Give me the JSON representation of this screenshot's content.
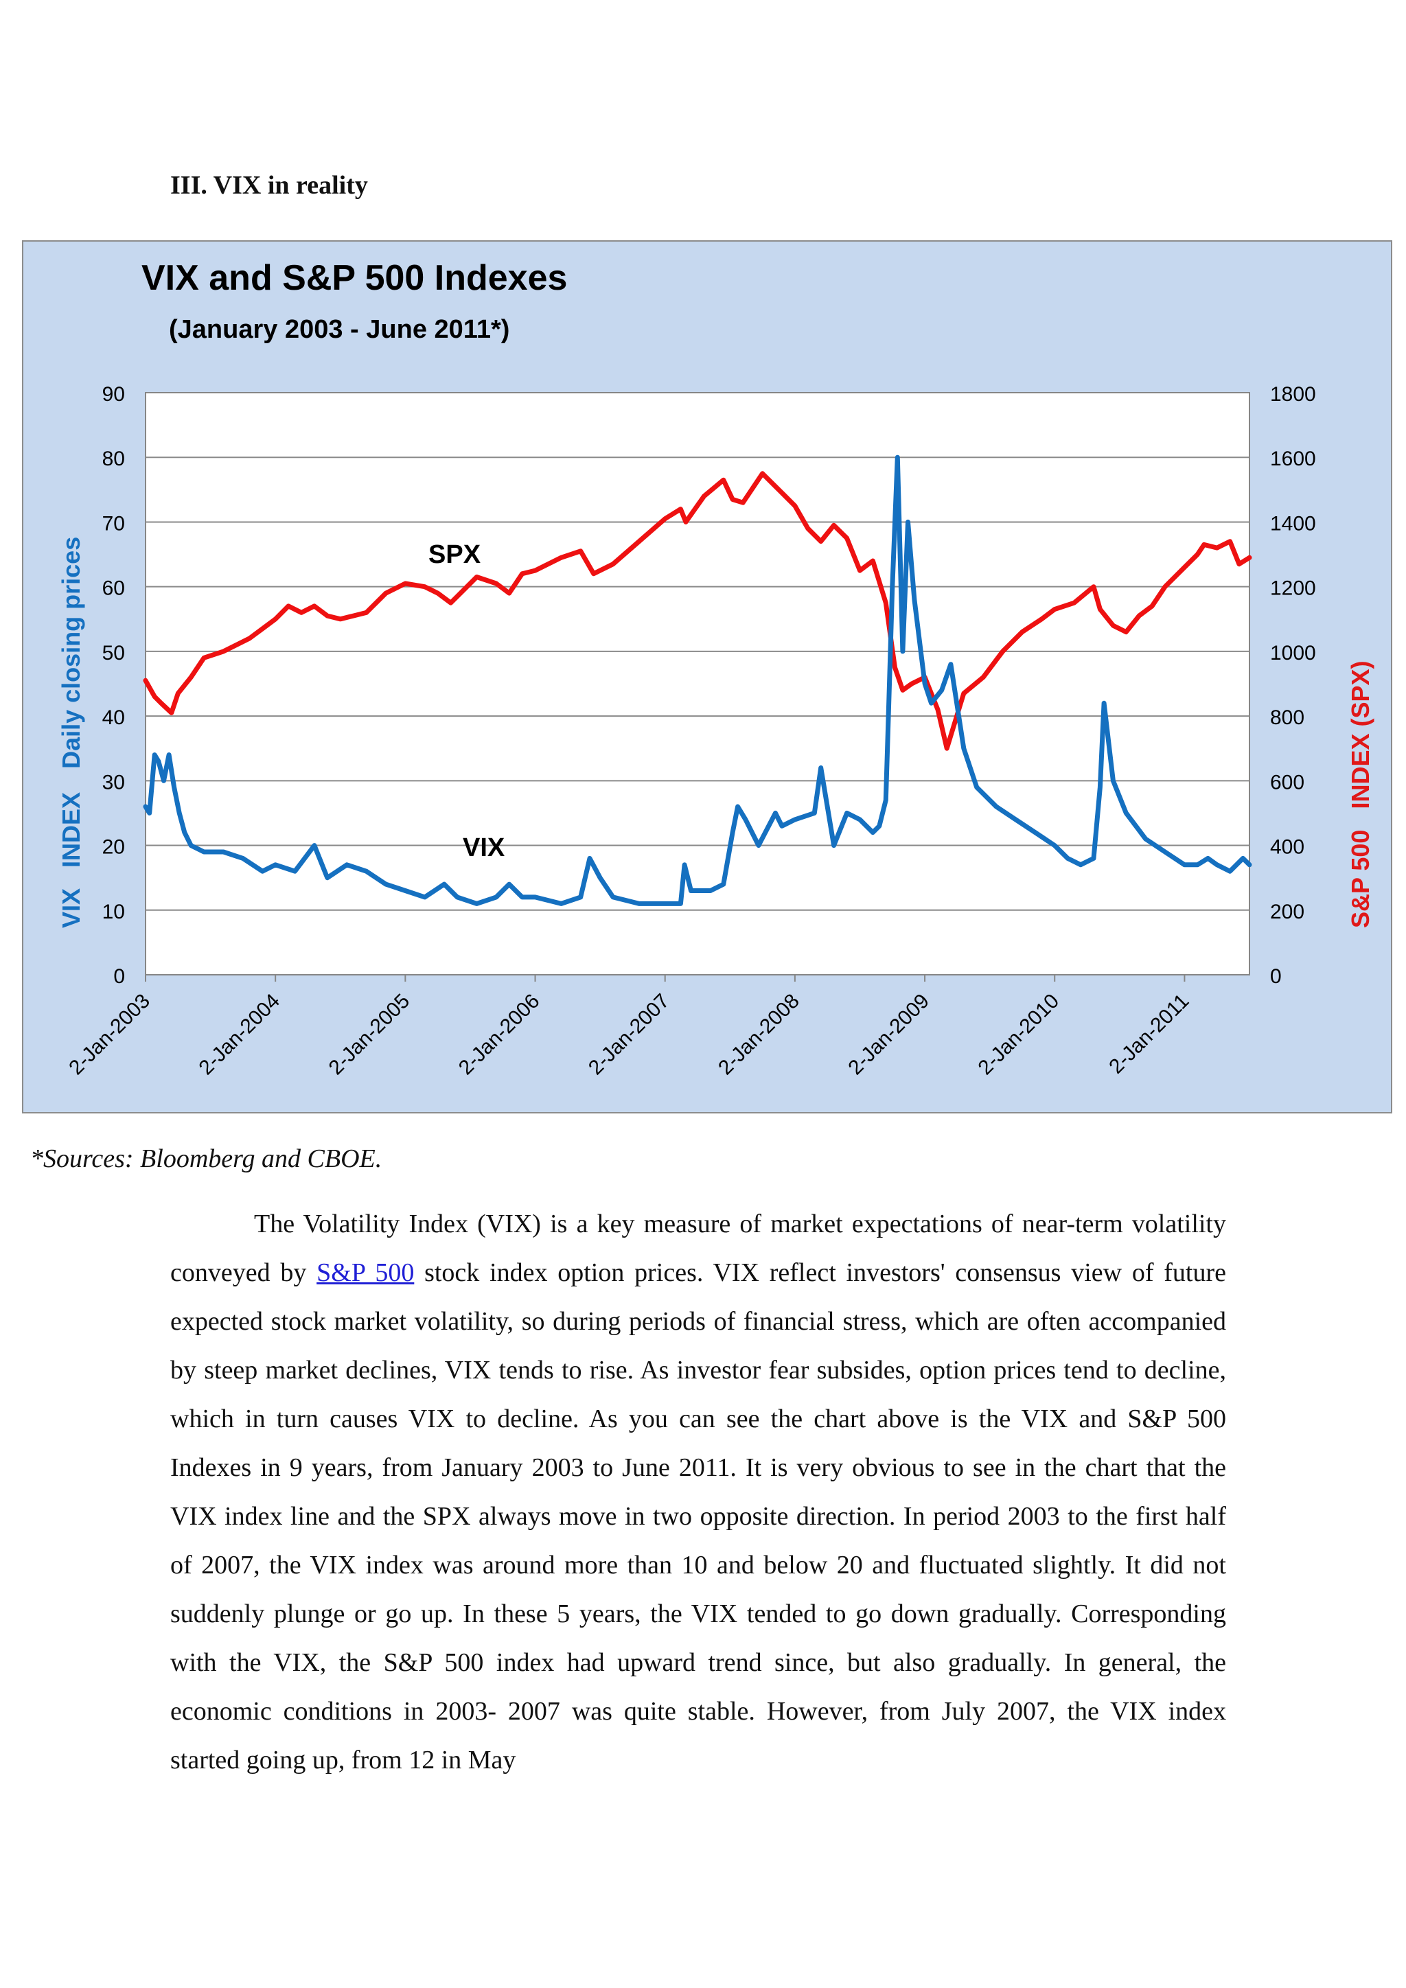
{
  "section_heading": "III. VIX in reality",
  "chart_data": {
    "type": "line",
    "title": "VIX and S&P 500 Indexes",
    "subtitle": "(January 2003 - June 2011*)",
    "ylabel_left_part1": "VIX   INDEX",
    "ylabel_left_part2": "Daily closing prices",
    "ylabel_right": "S&P 500   INDEX (SPX)",
    "ylim_left": [
      0,
      90
    ],
    "ylim_right": [
      0,
      1800
    ],
    "yticks_left": [
      "0",
      "10",
      "20",
      "30",
      "40",
      "50",
      "60",
      "70",
      "80",
      "90"
    ],
    "yticks_right": [
      "0",
      "200",
      "400",
      "600",
      "800",
      "1000",
      "1200",
      "1400",
      "1600",
      "1800"
    ],
    "xlim": [
      2003.0,
      2011.5
    ],
    "xticks": [
      "2-Jan-2003",
      "2-Jan-2004",
      "2-Jan-2005",
      "2-Jan-2006",
      "2-Jan-2007",
      "2-Jan-2008",
      "2-Jan-2009",
      "2-Jan-2010",
      "2-Jan-2011"
    ],
    "grid": true,
    "series": [
      {
        "name": "VIX",
        "axis": "left",
        "color": "#1570c0",
        "x": [
          2003.0,
          2003.03,
          2003.07,
          2003.1,
          2003.14,
          2003.18,
          2003.22,
          2003.26,
          2003.3,
          2003.35,
          2003.45,
          2003.6,
          2003.75,
          2003.9,
          2004.0,
          2004.15,
          2004.3,
          2004.4,
          2004.55,
          2004.7,
          2004.85,
          2005.0,
          2005.15,
          2005.3,
          2005.4,
          2005.55,
          2005.7,
          2005.8,
          2005.9,
          2006.0,
          2006.2,
          2006.35,
          2006.42,
          2006.5,
          2006.6,
          2006.8,
          2007.0,
          2007.12,
          2007.15,
          2007.2,
          2007.35,
          2007.45,
          2007.52,
          2007.56,
          2007.62,
          2007.72,
          2007.85,
          2007.9,
          2008.0,
          2008.15,
          2008.2,
          2008.3,
          2008.4,
          2008.5,
          2008.6,
          2008.65,
          2008.7,
          2008.72,
          2008.75,
          2008.79,
          2008.83,
          2008.87,
          2008.92,
          2009.0,
          2009.05,
          2009.13,
          2009.2,
          2009.3,
          2009.4,
          2009.55,
          2009.7,
          2009.85,
          2010.0,
          2010.1,
          2010.2,
          2010.3,
          2010.35,
          2010.38,
          2010.45,
          2010.55,
          2010.7,
          2010.85,
          2011.0,
          2011.1,
          2011.18,
          2011.25,
          2011.35,
          2011.45,
          2011.5
        ],
        "values": [
          26,
          25,
          34,
          33,
          30,
          34,
          29,
          25,
          22,
          20,
          19,
          19,
          18,
          16,
          17,
          16,
          20,
          15,
          17,
          16,
          14,
          13,
          12,
          14,
          12,
          11,
          12,
          14,
          12,
          12,
          11,
          12,
          18,
          15,
          12,
          11,
          11,
          11,
          17,
          13,
          13,
          14,
          22,
          26,
          24,
          20,
          25,
          23,
          24,
          25,
          32,
          20,
          25,
          24,
          22,
          23,
          27,
          40,
          60,
          80,
          50,
          70,
          58,
          45,
          42,
          44,
          48,
          35,
          29,
          26,
          24,
          22,
          20,
          18,
          17,
          18,
          29,
          42,
          30,
          25,
          21,
          19,
          17,
          17,
          18,
          17,
          16,
          18,
          17
        ]
      },
      {
        "name": "SPX",
        "axis": "right",
        "color": "#ee1111",
        "x": [
          2003.0,
          2003.07,
          2003.12,
          2003.2,
          2003.25,
          2003.35,
          2003.45,
          2003.6,
          2003.8,
          2004.0,
          2004.1,
          2004.2,
          2004.3,
          2004.4,
          2004.5,
          2004.6,
          2004.7,
          2004.85,
          2005.0,
          2005.15,
          2005.25,
          2005.35,
          2005.45,
          2005.55,
          2005.7,
          2005.8,
          2005.9,
          2006.0,
          2006.2,
          2006.35,
          2006.45,
          2006.6,
          2006.8,
          2007.0,
          2007.12,
          2007.16,
          2007.3,
          2007.45,
          2007.52,
          2007.6,
          2007.75,
          2007.9,
          2008.0,
          2008.1,
          2008.2,
          2008.3,
          2008.4,
          2008.5,
          2008.6,
          2008.7,
          2008.77,
          2008.83,
          2008.9,
          2009.0,
          2009.1,
          2009.17,
          2009.3,
          2009.45,
          2009.6,
          2009.75,
          2009.9,
          2010.0,
          2010.15,
          2010.3,
          2010.35,
          2010.45,
          2010.55,
          2010.65,
          2010.75,
          2010.85,
          2011.0,
          2011.1,
          2011.15,
          2011.25,
          2011.35,
          2011.42,
          2011.5
        ],
        "values": [
          910,
          860,
          840,
          810,
          870,
          920,
          980,
          1000,
          1040,
          1100,
          1140,
          1120,
          1140,
          1110,
          1100,
          1110,
          1120,
          1180,
          1210,
          1200,
          1180,
          1150,
          1190,
          1230,
          1210,
          1180,
          1240,
          1250,
          1290,
          1310,
          1240,
          1270,
          1340,
          1410,
          1440,
          1400,
          1480,
          1530,
          1470,
          1460,
          1550,
          1490,
          1450,
          1380,
          1340,
          1390,
          1350,
          1250,
          1280,
          1150,
          950,
          880,
          900,
          920,
          820,
          700,
          870,
          920,
          1000,
          1060,
          1100,
          1130,
          1150,
          1200,
          1130,
          1080,
          1060,
          1110,
          1140,
          1200,
          1260,
          1300,
          1330,
          1320,
          1340,
          1270,
          1290
        ]
      }
    ],
    "annotations": [
      "SPX",
      "VIX"
    ]
  },
  "sources_note": "*Sources: Bloomberg and CBOE.",
  "paragraph": {
    "before_link": "The Volatility Index (VIX) is a key measure of market expectations of near-term volatility conveyed by ",
    "link_text": "S&P 500",
    "after_link": " stock index option prices. VIX reflect investors' consensus view of future expected stock market volatility, so during periods of financial stress, which are often accompanied by steep market declines, VIX tends to rise.  As investor fear subsides, option prices tend to decline, which in turn causes VIX to decline. As you can see the chart above is the VIX and S&P 500 Indexes in 9 years, from January 2003 to June 2011. It is very obvious to see in the chart that the VIX index line and the SPX always move in two opposite direction. In period 2003 to the first half of 2007, the VIX index was around more than 10 and below 20 and fluctuated slightly. It did not suddenly plunge or go up. In these 5 years, the VIX tended to go down gradually. Corresponding with the VIX, the S&P 500 index had upward trend since, but also gradually. In general, the economic conditions in 2003- 2007 was quite stable. However, from July 2007, the VIX index started going up, from 12 in May"
  }
}
